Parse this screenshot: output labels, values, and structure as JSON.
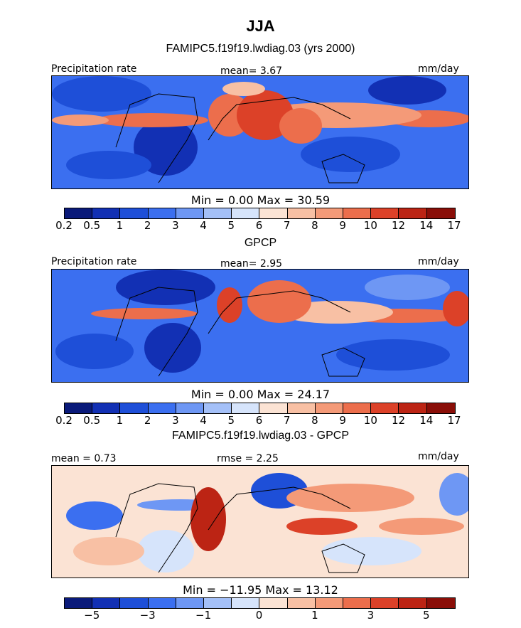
{
  "title": "JJA",
  "subtitle": "FAMIPC5.f19f19.lwdiag.03 (yrs 2000)",
  "palette_abs": [
    "#0a1a7a",
    "#1230b4",
    "#1e4fd8",
    "#3b6ff0",
    "#6e97f4",
    "#a4c0f8",
    "#d6e4fb",
    "#fbe3d4",
    "#f8c0a4",
    "#f49a78",
    "#ec6e4c",
    "#dc4128",
    "#bc2414",
    "#8a0e08"
  ],
  "palette_diff": [
    "#0a1a7a",
    "#1230b4",
    "#1e4fd8",
    "#3b6ff0",
    "#6e97f4",
    "#a4c0f8",
    "#d6e4fb",
    "#fbe3d4",
    "#f8c0a4",
    "#f49a78",
    "#ec6e4c",
    "#dc4128",
    "#bc2414",
    "#8a0e08"
  ],
  "panels": [
    {
      "left_label": "Precipitation rate",
      "stat_text": "mean=   3.67",
      "units": "mm/day",
      "minmax_text": "Min =    0.00  Max =   30.59",
      "ticks": [
        "0.2",
        "0.5",
        "1",
        "2",
        "3",
        "4",
        "5",
        "6",
        "7",
        "8",
        "9",
        "10",
        "12",
        "14",
        "17"
      ],
      "below_title": "GPCP"
    },
    {
      "left_label": "Precipitation rate",
      "stat_text": "mean=   2.95",
      "units": "mm/day",
      "minmax_text": "Min =    0.00  Max =   24.17",
      "ticks": [
        "0.2",
        "0.5",
        "1",
        "2",
        "3",
        "4",
        "5",
        "6",
        "7",
        "8",
        "9",
        "10",
        "12",
        "14",
        "17"
      ],
      "below_title": "FAMIPC5.f19f19.lwdiag.03 - GPCP"
    },
    {
      "left_label": "mean =   0.73",
      "stat_text": "rmse =   2.25",
      "units": "mm/day",
      "minmax_text": "Min = −11.95  Max =   13.12",
      "ticks": [
        "−5",
        "−3",
        "−1",
        "0",
        "1",
        "3",
        "5"
      ],
      "below_title": ""
    }
  ],
  "chart_data": [
    {
      "type": "heatmap",
      "title": "FAMIPC5.f19f19.lwdiag.03 (yrs 2000)",
      "variable": "Precipitation rate",
      "units": "mm/day",
      "season": "JJA",
      "mean": 3.67,
      "min": 0.0,
      "max": 30.59,
      "contour_levels": [
        0.2,
        0.5,
        1,
        2,
        3,
        4,
        5,
        6,
        7,
        8,
        9,
        10,
        12,
        14,
        17
      ]
    },
    {
      "type": "heatmap",
      "title": "GPCP",
      "variable": "Precipitation rate",
      "units": "mm/day",
      "season": "JJA",
      "mean": 2.95,
      "min": 0.0,
      "max": 24.17,
      "contour_levels": [
        0.2,
        0.5,
        1,
        2,
        3,
        4,
        5,
        6,
        7,
        8,
        9,
        10,
        12,
        14,
        17
      ]
    },
    {
      "type": "heatmap",
      "title": "FAMIPC5.f19f19.lwdiag.03 - GPCP",
      "units": "mm/day",
      "season": "JJA",
      "mean": 0.73,
      "rmse": 2.25,
      "min": -11.95,
      "max": 13.12,
      "contour_levels": [
        -5,
        -3,
        -1,
        0,
        1,
        3,
        5
      ]
    }
  ]
}
